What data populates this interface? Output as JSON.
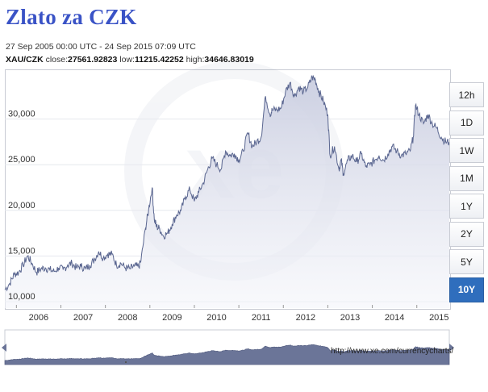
{
  "header": {
    "title": "Zlato za CZK",
    "range": "27 Sep 2005 00:00 UTC - 24 Sep 2015 07:09 UTC",
    "pair": "XAU/CZK",
    "close_label": "close:",
    "close": "27561.92823",
    "low_label": "low:",
    "low": "11215.42252",
    "high_label": "high:",
    "high": "34646.83019"
  },
  "buttons": [
    {
      "label": "12h",
      "active": false
    },
    {
      "label": "1D",
      "active": false
    },
    {
      "label": "1W",
      "active": false
    },
    {
      "label": "1M",
      "active": false
    },
    {
      "label": "1Y",
      "active": false
    },
    {
      "label": "2Y",
      "active": false
    },
    {
      "label": "5Y",
      "active": false
    },
    {
      "label": "10Y",
      "active": true
    }
  ],
  "footer": {
    "url": "http://www.xe.com/currencycharts/"
  },
  "colors": {
    "title": "#3a53c6",
    "line": "#5a6690",
    "area": "#dde0ec",
    "active_button": "#2f6ebd",
    "navigator": "#6b7598"
  },
  "chart_data": {
    "type": "area",
    "x_ticks": [
      "2006",
      "2007",
      "2008",
      "2009",
      "2010",
      "2011",
      "2012",
      "2013",
      "2014",
      "2015"
    ],
    "y_ticks": [
      "10,000",
      "15,000",
      "20,000",
      "25,000",
      "30,000"
    ],
    "ylim": [
      10000,
      35000
    ],
    "xlim": [
      2005.74,
      2015.73
    ],
    "grid": true,
    "series": [
      {
        "x": [
          2005.74,
          2005.85,
          2005.95,
          2006.05,
          2006.15,
          2006.25,
          2006.35,
          2006.45,
          2006.55,
          2006.65,
          2006.75,
          2006.85,
          2006.95,
          2007.05,
          2007.15,
          2007.25,
          2007.35,
          2007.45,
          2007.55,
          2007.65,
          2007.75,
          2007.85,
          2007.95,
          2008.05,
          2008.15,
          2008.25,
          2008.35,
          2008.45,
          2008.55,
          2008.65,
          2008.75,
          2008.8,
          2008.9,
          2008.97,
          2009.05,
          2009.1,
          2009.15,
          2009.22,
          2009.3,
          2009.4,
          2009.5,
          2009.6,
          2009.7,
          2009.8,
          2009.9,
          2010.0,
          2010.1,
          2010.2,
          2010.3,
          2010.4,
          2010.5,
          2010.6,
          2010.7,
          2010.8,
          2010.9,
          2011.0,
          2011.1,
          2011.2,
          2011.3,
          2011.4,
          2011.5,
          2011.6,
          2011.7,
          2011.75,
          2011.85,
          2011.95,
          2012.05,
          2012.15,
          2012.25,
          2012.35,
          2012.45,
          2012.55,
          2012.65,
          2012.72,
          2012.8,
          2012.9,
          2013.0,
          2013.05,
          2013.15,
          2013.25,
          2013.3,
          2013.35,
          2013.45,
          2013.55,
          2013.65,
          2013.75,
          2013.85,
          2013.95,
          2014.05,
          2014.15,
          2014.25,
          2014.35,
          2014.45,
          2014.55,
          2014.65,
          2014.75,
          2014.85,
          2014.92,
          2014.97,
          2015.05,
          2015.15,
          2015.25,
          2015.35,
          2015.45,
          2015.55,
          2015.65,
          2015.73
        ],
        "y": [
          11300,
          12000,
          13000,
          13200,
          14000,
          15000,
          14200,
          13200,
          13600,
          13700,
          13500,
          13300,
          13700,
          13500,
          14000,
          14200,
          13700,
          13900,
          13600,
          14000,
          14600,
          15500,
          14800,
          15200,
          15200,
          14000,
          14200,
          13700,
          13600,
          13900,
          13800,
          14500,
          18000,
          20000,
          22500,
          19000,
          18200,
          18000,
          17200,
          17500,
          18500,
          19500,
          20000,
          21500,
          22300,
          21000,
          22000,
          23000,
          24500,
          25700,
          25000,
          24500,
          26500,
          26000,
          26200,
          25500,
          26500,
          28500,
          27000,
          27500,
          28000,
          32500,
          30500,
          31000,
          31000,
          31200,
          33000,
          34000,
          32500,
          33500,
          33000,
          33500,
          34600,
          34300,
          33000,
          32000,
          30500,
          26000,
          27000,
          24500,
          25500,
          24000,
          25500,
          26000,
          25300,
          26200,
          24800,
          25000,
          25500,
          26000,
          25500,
          26200,
          27000,
          26500,
          26000,
          26200,
          26500,
          28000,
          31500,
          30500,
          29500,
          30500,
          29500,
          29000,
          28000,
          27500,
          27500
        ]
      }
    ]
  }
}
